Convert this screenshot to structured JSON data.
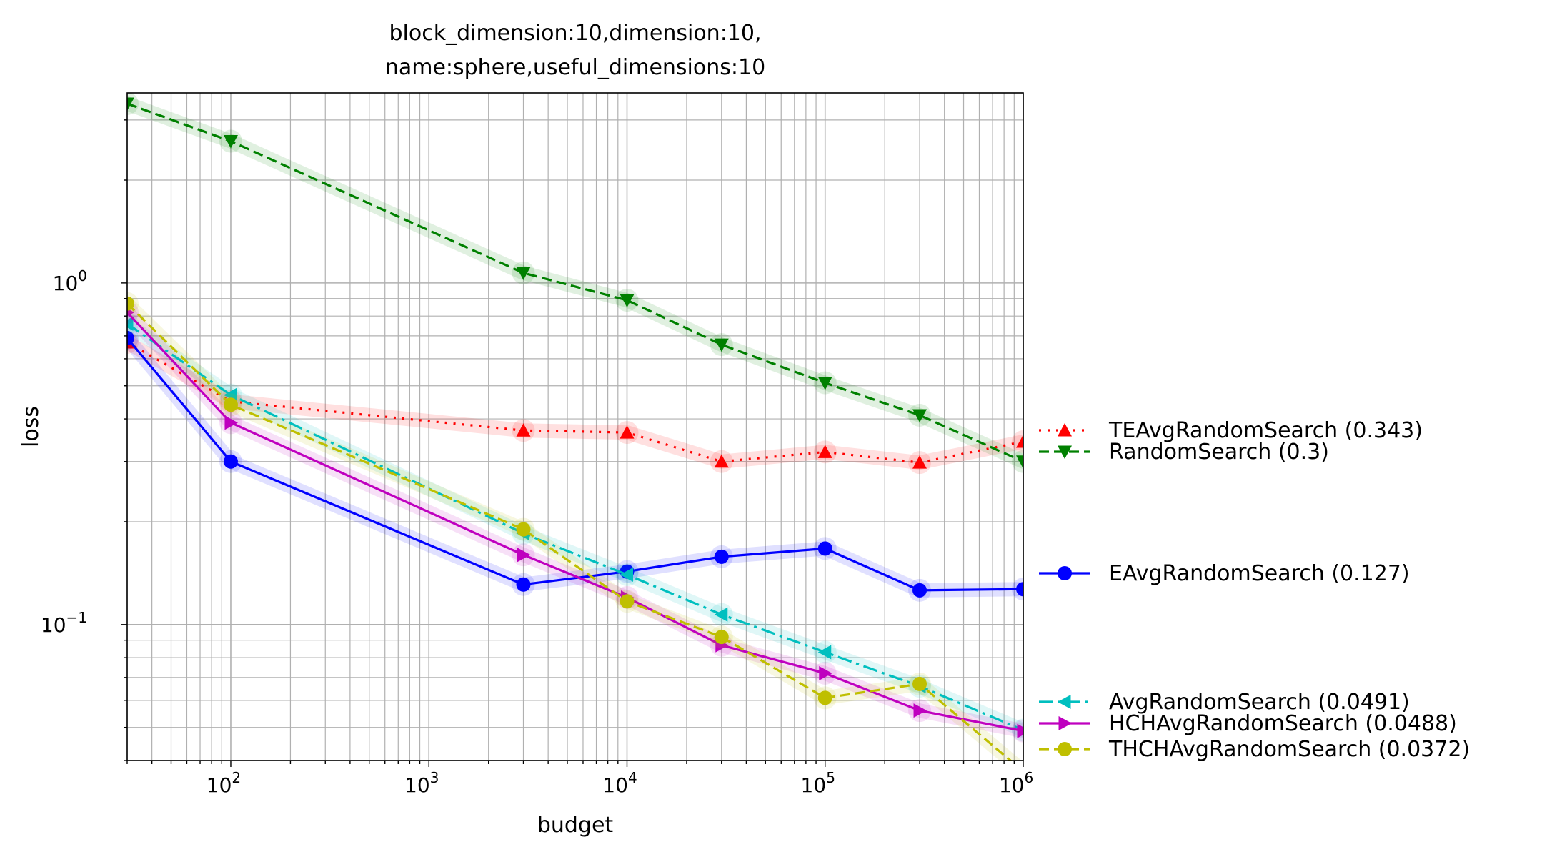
{
  "chart_data": {
    "type": "line",
    "title_lines": [
      "block_dimension:10,dimension:10,",
      "name:sphere,useful_dimensions:10"
    ],
    "xlabel": "budget",
    "ylabel": "loss",
    "xscale": "log",
    "yscale": "log",
    "xlim": [
      30,
      1000000
    ],
    "ylim": [
      0.04,
      3.6
    ],
    "grid": true,
    "legend_position": "right outside",
    "x_ticks": [
      {
        "value": 100,
        "base": "10",
        "exp": "2"
      },
      {
        "value": 1000,
        "base": "10",
        "exp": "3"
      },
      {
        "value": 10000,
        "base": "10",
        "exp": "4"
      },
      {
        "value": 100000,
        "base": "10",
        "exp": "5"
      },
      {
        "value": 1000000,
        "base": "10",
        "exp": "6"
      }
    ],
    "y_ticks": [
      {
        "value": 1,
        "base": "10",
        "exp": "0"
      },
      {
        "value": 0.1,
        "base": "10",
        "exp": "−1"
      }
    ],
    "series": [
      {
        "name": "TEAvgRandomSearch (0.343)",
        "color": "#ff0000",
        "dash": "3,9",
        "marker": "triangle-up",
        "x": [
          30,
          100,
          3000,
          10000,
          30000,
          100000,
          300000,
          1000000
        ],
        "y": [
          0.67,
          0.45,
          0.37,
          0.365,
          0.3,
          0.32,
          0.298,
          0.343
        ]
      },
      {
        "name": "RandomSearch (0.3)",
        "color": "#008000",
        "dash": "14,7",
        "marker": "triangle-down",
        "x": [
          30,
          100,
          3000,
          10000,
          30000,
          100000,
          300000,
          1000000
        ],
        "y": [
          3.35,
          2.6,
          1.07,
          0.89,
          0.66,
          0.51,
          0.41,
          0.3
        ]
      },
      {
        "name": "EAvgRandomSearch (0.127)",
        "color": "#0000ff",
        "dash": "",
        "marker": "circle",
        "x": [
          30,
          100,
          3000,
          10000,
          30000,
          100000,
          300000,
          1000000
        ],
        "y": [
          0.69,
          0.3,
          0.131,
          0.143,
          0.158,
          0.167,
          0.126,
          0.127
        ]
      },
      {
        "name": "AvgRandomSearch (0.0491)",
        "color": "#00bfbf",
        "dash": "20,7,4,7",
        "marker": "triangle-left",
        "x": [
          30,
          100,
          3000,
          10000,
          30000,
          100000,
          300000,
          1000000
        ],
        "y": [
          0.76,
          0.47,
          0.185,
          0.14,
          0.107,
          0.083,
          0.066,
          0.0491
        ]
      },
      {
        "name": "HCHAvgRandomSearch (0.0488)",
        "color": "#bf00bf",
        "dash": "",
        "marker": "triangle-right",
        "x": [
          30,
          100,
          3000,
          10000,
          30000,
          100000,
          300000,
          1000000
        ],
        "y": [
          0.82,
          0.39,
          0.16,
          0.12,
          0.087,
          0.072,
          0.056,
          0.0488
        ]
      },
      {
        "name": "THCHAvgRandomSearch (0.0372)",
        "color": "#bfbf00",
        "dash": "14,7",
        "marker": "circle",
        "x": [
          30,
          100,
          3000,
          10000,
          30000,
          100000,
          300000,
          1000000
        ],
        "y": [
          0.87,
          0.44,
          0.19,
          0.117,
          0.092,
          0.061,
          0.067,
          0.0372
        ]
      }
    ]
  }
}
